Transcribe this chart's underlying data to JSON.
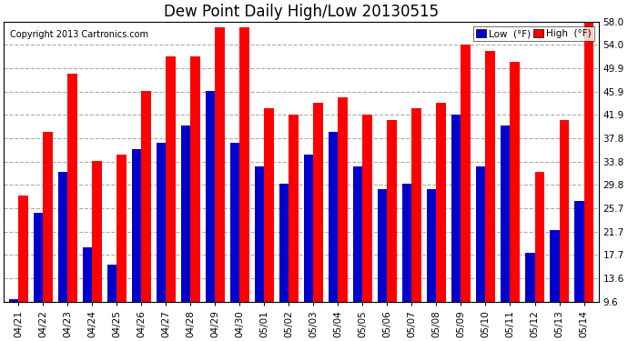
{
  "title": "Dew Point Daily High/Low 20130515",
  "copyright": "Copyright 2013 Cartronics.com",
  "dates": [
    "04/21",
    "04/22",
    "04/23",
    "04/24",
    "04/25",
    "04/26",
    "04/27",
    "04/28",
    "04/29",
    "04/30",
    "05/01",
    "05/02",
    "05/03",
    "05/04",
    "05/05",
    "05/06",
    "05/07",
    "05/08",
    "05/09",
    "05/10",
    "05/11",
    "05/12",
    "05/13",
    "05/14"
  ],
  "high": [
    28,
    39,
    49,
    34,
    35,
    46,
    52,
    52,
    57,
    57,
    43,
    42,
    44,
    45,
    42,
    41,
    43,
    44,
    54,
    53,
    51,
    32,
    41,
    58
  ],
  "low": [
    10,
    25,
    32,
    19,
    16,
    36,
    37,
    40,
    46,
    37,
    33,
    30,
    35,
    39,
    33,
    29,
    30,
    29,
    42,
    33,
    40,
    18,
    22,
    27
  ],
  "ylim_min": 9.6,
  "ylim_max": 58.0,
  "yticks": [
    9.6,
    13.6,
    17.7,
    21.7,
    25.7,
    29.8,
    33.8,
    37.8,
    41.9,
    45.9,
    49.9,
    54.0,
    58.0
  ],
  "ytick_labels": [
    "9.6",
    "13.6",
    "17.7",
    "21.7",
    "25.7",
    "29.8",
    "33.8",
    "37.8",
    "41.9",
    "45.9",
    "49.9",
    "54.0",
    "58.0"
  ],
  "bar_width": 0.38,
  "high_color": "#ff0000",
  "low_color": "#0000cd",
  "bg_color": "#ffffff",
  "grid_color": "#aaaaaa",
  "title_fontsize": 12,
  "tick_fontsize": 7.5,
  "copyright_fontsize": 7
}
